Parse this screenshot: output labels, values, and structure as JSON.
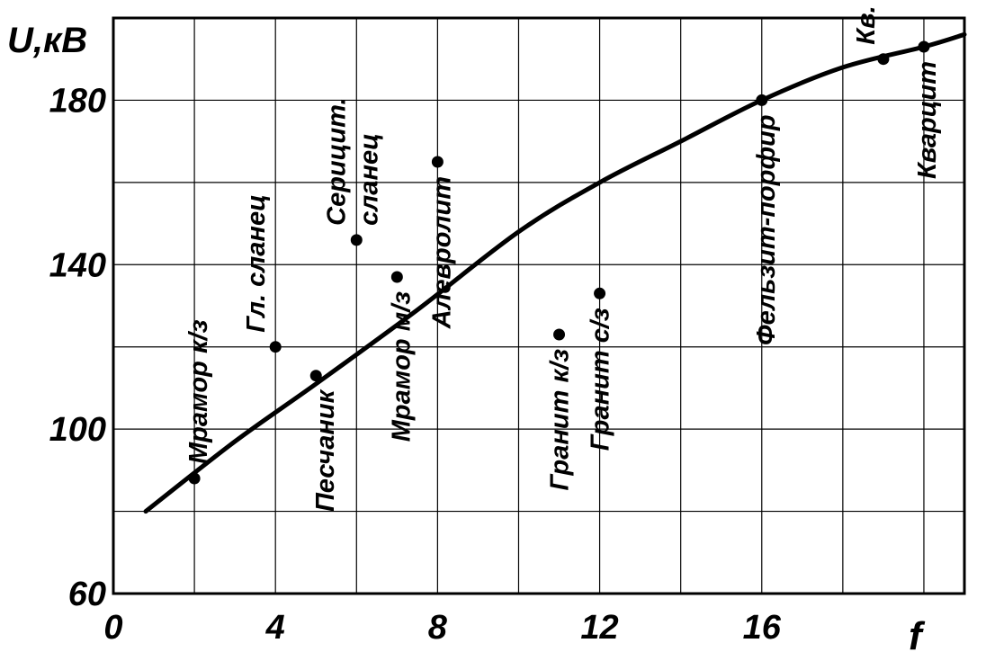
{
  "chart_data": {
    "type": "scatter",
    "title": "",
    "xlabel": "f",
    "ylabel": "U,кВ",
    "xlim": [
      0,
      21
    ],
    "ylim": [
      60,
      200
    ],
    "x_ticks": [
      0,
      4,
      8,
      12,
      16
    ],
    "y_ticks": [
      60,
      100,
      140,
      180
    ],
    "x_tick_labels": [
      "0",
      "4",
      "8",
      "12",
      "16"
    ],
    "y_tick_labels": [
      "60",
      "100",
      "140",
      "180"
    ],
    "grid": true,
    "color": "#000000",
    "points": [
      {
        "label": "Мрамор к/з",
        "x": 2,
        "y": 88
      },
      {
        "label": "Гл. сланец",
        "x": 4,
        "y": 120
      },
      {
        "label": "Песчаник",
        "x": 5,
        "y": 113
      },
      {
        "label": "Серицит. сланец",
        "x": 6,
        "y": 146
      },
      {
        "label": "Мрамор м/з",
        "x": 7,
        "y": 137
      },
      {
        "label": "Алевролит",
        "x": 8,
        "y": 165
      },
      {
        "label": "Гранит к/з",
        "x": 11,
        "y": 123
      },
      {
        "label": "Гранит с/з",
        "x": 12,
        "y": 133
      },
      {
        "label": "Фельзит-порфир",
        "x": 16,
        "y": 180
      },
      {
        "label": "Кв. порфир",
        "x": 19,
        "y": 190
      },
      {
        "label": "Кварцит",
        "x": 20,
        "y": 193
      }
    ],
    "trend_curve": {
      "x": [
        0.8,
        3,
        5,
        7.5,
        10,
        12,
        14,
        16,
        18,
        20,
        21
      ],
      "y": [
        80,
        97,
        111,
        129,
        148,
        160,
        170,
        180,
        188,
        193,
        196
      ]
    }
  }
}
